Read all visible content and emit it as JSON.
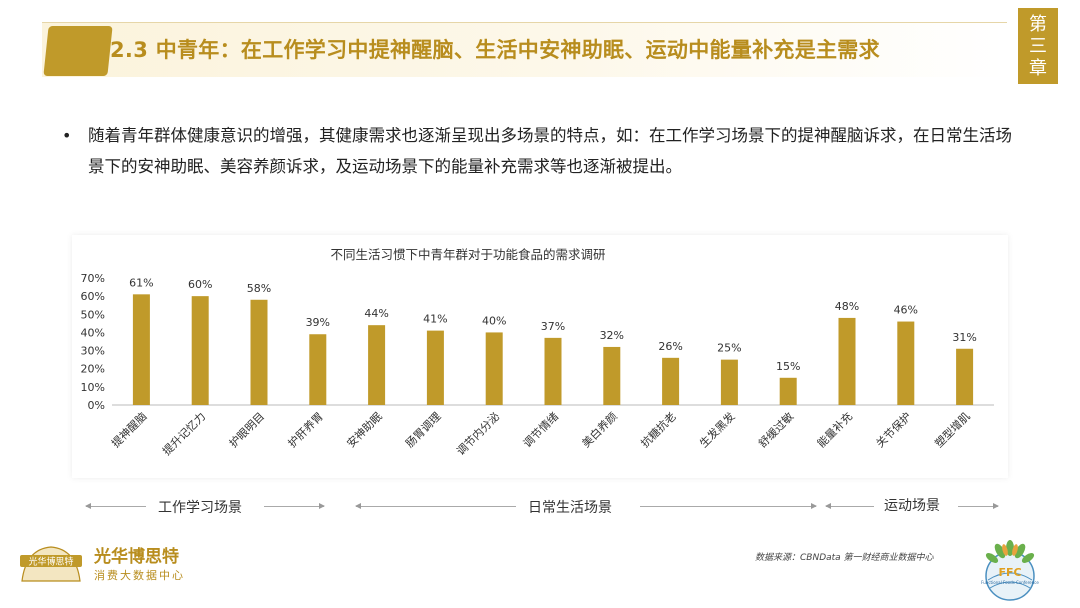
{
  "header": {
    "title": "2.3 中青年：在工作学习中提神醒脑、生活中安神助眠、运动中能量补充是主需求",
    "chapter_chars": [
      "第",
      "三",
      "章"
    ]
  },
  "bullet": {
    "marker": "•",
    "text": "随着青年群体健康意识的增强，其健康需求也逐渐呈现出多场景的特点，如：在工作学习场景下的提神醒脑诉求，在日常生活场景下的安神助眠、美容养颜诉求，及运动场景下的能量补充需求等也逐渐被提出。"
  },
  "chart_data": {
    "type": "bar",
    "title": "不同生活习惯下中青年群对于功能食品的需求调研",
    "categories": [
      "提神醒脑",
      "提升记忆力",
      "护眼明目",
      "护肝养胃",
      "安神助眠",
      "肠胃调理",
      "调节内分泌",
      "调节情绪",
      "美白养颜",
      "抗糖抗老",
      "生发黑发",
      "舒缓过敏",
      "能量补充",
      "关节保护",
      "塑型增肌"
    ],
    "values": [
      61,
      60,
      58,
      39,
      44,
      41,
      40,
      37,
      32,
      26,
      25,
      15,
      48,
      46,
      31
    ],
    "value_labels": [
      "61%",
      "60%",
      "58%",
      "39%",
      "44%",
      "41%",
      "40%",
      "37%",
      "32%",
      "26%",
      "25%",
      "15%",
      "48%",
      "46%",
      "31%"
    ],
    "yticks": [
      "0%",
      "10%",
      "20%",
      "30%",
      "40%",
      "50%",
      "60%",
      "70%"
    ],
    "ylim": [
      0,
      70
    ],
    "bar_color": "#c09a2a",
    "grid": false
  },
  "groups": [
    {
      "label": "工作学习场景"
    },
    {
      "label": "日常生活场景"
    },
    {
      "label": "运动场景"
    }
  ],
  "footer": {
    "logo_text": "光华博思特",
    "brand_name": "光华博思特",
    "brand_sub": "消费大数据中心",
    "source": "数据来源：CBNData 第一财经商业数据中心",
    "ffc_logo_text": "FFC",
    "ffc_sub": "Functional Foods Conference"
  },
  "colors": {
    "accent": "#c09a2a",
    "title": "#b88d1e"
  }
}
